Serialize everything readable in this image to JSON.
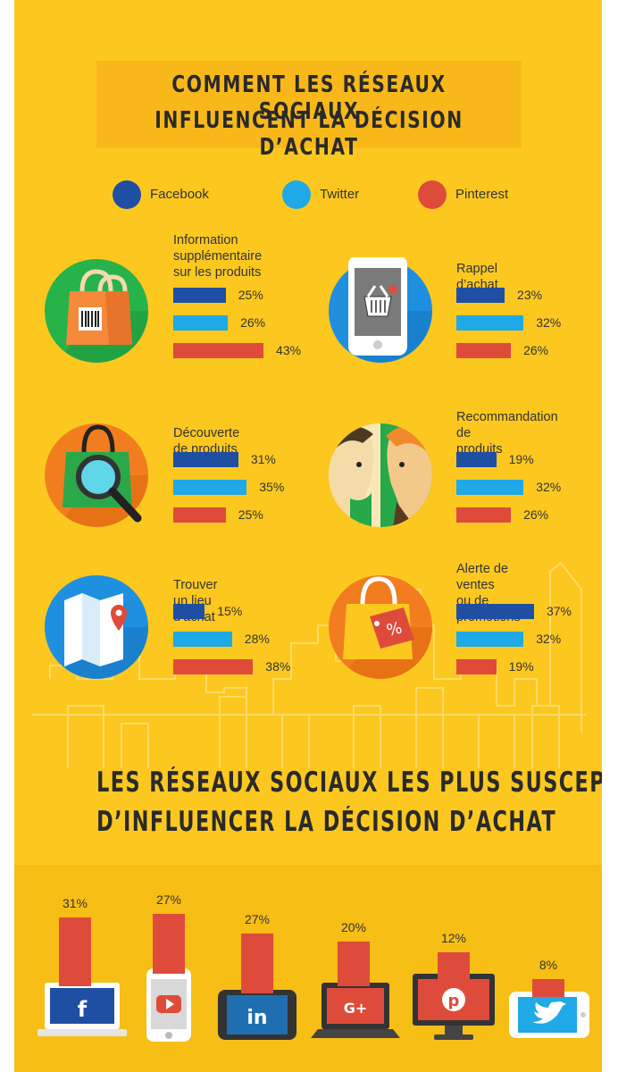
{
  "header": {
    "title_line1": "COMMENT LES RÉSEAUX SOCIAUX",
    "title_line2": "INFLUENCENT LA DÉCISION D’ACHAT"
  },
  "legend": [
    {
      "label": "Facebook",
      "color": "#1f4fa3"
    },
    {
      "label": "Twitter",
      "color": "#1fa9e6"
    },
    {
      "label": "Pinterest",
      "color": "#df4b3a"
    }
  ],
  "chart_data": [
    {
      "type": "bar",
      "series_names": [
        "Facebook",
        "Twitter",
        "Pinterest"
      ],
      "panels": [
        {
          "label": "Information\nsupplémentaire\nsur les produits",
          "icon": "shopping-bag-barcode-icon",
          "values": [
            25,
            26,
            43
          ],
          "value_labels": [
            "25%",
            "26%",
            "43%"
          ]
        },
        {
          "label": "Rappel d’achat",
          "icon": "phone-basket-icon",
          "values": [
            23,
            32,
            26
          ],
          "value_labels": [
            "23%",
            "32%",
            "26%"
          ]
        },
        {
          "label": "Découverte de produits",
          "icon": "bag-magnifier-icon",
          "values": [
            31,
            35,
            25
          ],
          "value_labels": [
            "31%",
            "35%",
            "25%"
          ]
        },
        {
          "label": "Recommandation de\nproduits",
          "icon": "two-faces-icon",
          "values": [
            19,
            32,
            26
          ],
          "value_labels": [
            "19%",
            "32%",
            "26%"
          ]
        },
        {
          "label": "Trouver un lieu d’achat",
          "icon": "map-pin-icon",
          "values": [
            15,
            28,
            38
          ],
          "value_labels": [
            "15%",
            "28%",
            "38%"
          ]
        },
        {
          "label": "Alerte de ventes\nou de promotions",
          "icon": "bag-percent-tag-icon",
          "values": [
            37,
            32,
            19
          ],
          "value_labels": [
            "37%",
            "32%",
            "19%"
          ]
        }
      ]
    },
    {
      "type": "bar",
      "title_line1": "LES RÉSEAUX SOCIAUX LES PLUS SUSCEPTIBLES",
      "title_line2": "D’INFLUENCER LA DÉCISION D’ACHAT",
      "categories": [
        "facebook-laptop-icon",
        "youtube-phone-icon",
        "linkedin-tablet-icon",
        "google-plus-laptop-icon",
        "pinterest-monitor-icon",
        "twitter-phone-icon"
      ],
      "values": [
        31,
        27,
        27,
        20,
        12,
        8
      ],
      "value_labels": [
        "31%",
        "27%",
        "27%",
        "20%",
        "12%",
        "8%"
      ]
    }
  ]
}
